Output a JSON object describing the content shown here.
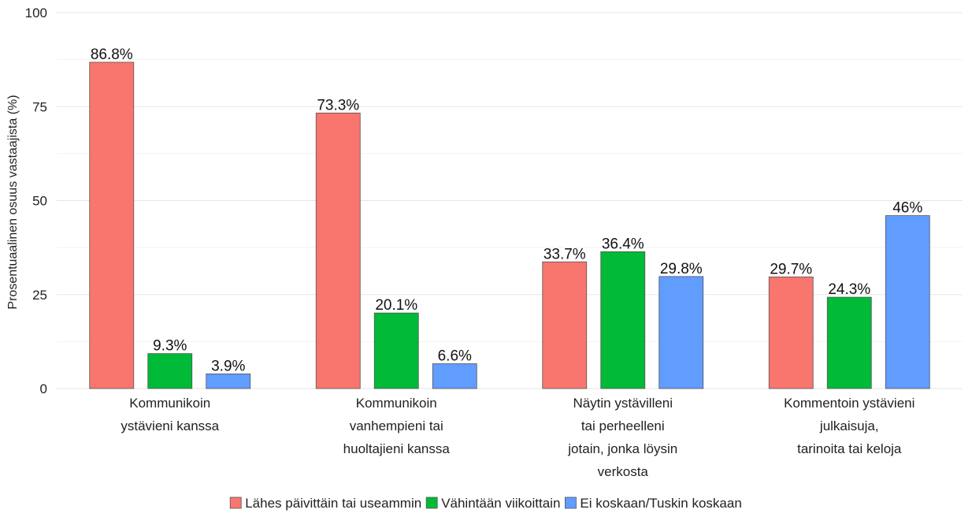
{
  "chart_data": {
    "type": "bar",
    "title": "",
    "xlabel": "",
    "ylabel": "Prosentuaalinen osuus vastaajista (%)",
    "ylim": [
      0,
      100
    ],
    "yticks": [
      "0",
      "25",
      "50",
      "75",
      "100"
    ],
    "grid": true,
    "legend_position": "bottom",
    "categories": [
      [
        "Kommunikoin",
        "ystävieni kanssa"
      ],
      [
        "Kommunikoin",
        "vanhempieni tai",
        "huoltajieni kanssa"
      ],
      [
        "Näytin ystävilleni",
        "tai perheelleni",
        "jotain, jonka löysin",
        "verkosta"
      ],
      [
        "Kommentoin ystävieni",
        "julkaisuja,",
        "tarinoita tai keloja"
      ]
    ],
    "series": [
      {
        "name": "Lähes päivittäin tai useammin",
        "color": "#F8766D",
        "values": [
          86.8,
          73.3,
          33.7,
          29.7
        ],
        "labels": [
          "86.8%",
          "73.3%",
          "33.7%",
          "29.7%"
        ]
      },
      {
        "name": "Vähintään viikoittain",
        "color": "#00BA38",
        "values": [
          9.3,
          20.1,
          36.4,
          24.3
        ],
        "labels": [
          "9.3%",
          "20.1%",
          "36.4%",
          "24.3%"
        ]
      },
      {
        "name": "Ei koskaan/Tuskin koskaan",
        "color": "#619CFF",
        "values": [
          3.9,
          6.6,
          29.8,
          46
        ],
        "labels": [
          "3.9%",
          "6.6%",
          "29.8%",
          "46%"
        ]
      }
    ]
  }
}
